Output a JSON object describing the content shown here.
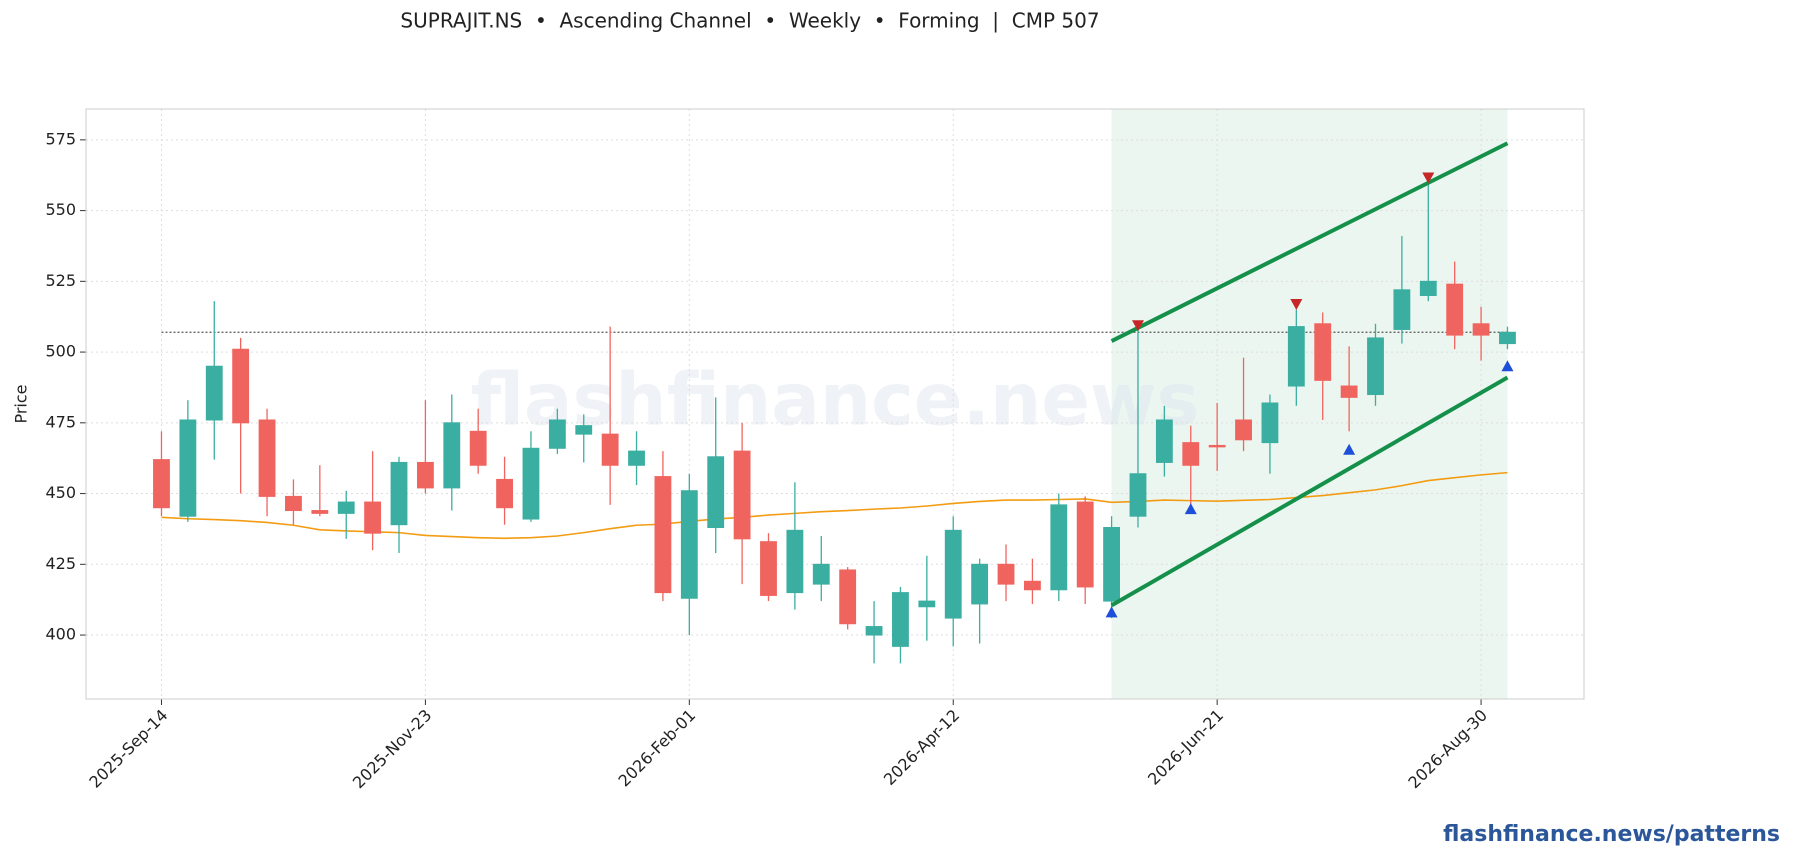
{
  "chart_data": {
    "type": "candlestick",
    "title": "SUPRAJIT.NS  •  Ascending Channel  •  Weekly  •  Forming  |  CMP 507",
    "y_label": "Price",
    "watermark": "flashfinance.news",
    "footer": "flashfinance.news/patterns",
    "categories": [
      "2025-Sep-14",
      null,
      null,
      null,
      null,
      null,
      null,
      null,
      null,
      null,
      "2025-Nov-23",
      null,
      null,
      null,
      null,
      null,
      null,
      null,
      null,
      null,
      "2026-Feb-01",
      null,
      null,
      null,
      null,
      null,
      null,
      null,
      null,
      null,
      "2026-Apr-12",
      null,
      null,
      null,
      null,
      null,
      null,
      null,
      null,
      null,
      "2026-Jun-21",
      null,
      null,
      null,
      null,
      null,
      null,
      null,
      null,
      null,
      "2026-Aug-30",
      null
    ],
    "open": [
      462,
      442,
      476,
      501,
      476,
      449,
      444,
      443,
      447,
      439,
      461,
      452,
      472,
      455,
      441,
      466,
      471,
      471,
      460,
      456,
      413,
      438,
      465,
      433,
      415,
      418,
      423,
      400,
      396,
      410,
      406,
      411,
      425,
      419,
      416,
      447,
      412,
      442,
      461,
      468,
      467,
      476,
      468,
      488,
      510,
      488,
      485,
      508,
      520,
      524,
      510,
      503
    ],
    "high": [
      472,
      483,
      518,
      505,
      480,
      455,
      460,
      451,
      465,
      463,
      483,
      485,
      480,
      463,
      472,
      480,
      478,
      509,
      472,
      465,
      457,
      484,
      475,
      436,
      454,
      435,
      424,
      412,
      417,
      428,
      442,
      427,
      432,
      427,
      450,
      449,
      442,
      510,
      481,
      474,
      482,
      498,
      485,
      515,
      514,
      502,
      510,
      541,
      560,
      532,
      516,
      509
    ],
    "low": [
      442,
      440,
      462,
      450,
      442,
      439,
      442,
      434,
      430,
      429,
      450,
      444,
      457,
      439,
      440,
      464,
      461,
      446,
      453,
      412,
      400,
      429,
      418,
      412,
      409,
      412,
      402,
      390,
      390,
      398,
      396,
      397,
      412,
      411,
      412,
      411,
      406,
      438,
      456,
      445,
      458,
      465,
      457,
      481,
      476,
      472,
      481,
      503,
      518,
      501,
      497,
      501
    ],
    "close": [
      445,
      476,
      495,
      475,
      449,
      444,
      443,
      447,
      436,
      461,
      452,
      475,
      460,
      445,
      466,
      476,
      474,
      460,
      465,
      415,
      451,
      463,
      434,
      414,
      437,
      425,
      404,
      403,
      415,
      412,
      437,
      425,
      418,
      416,
      446,
      417,
      438,
      457,
      476,
      460,
      466.5,
      469,
      482,
      509,
      490,
      484,
      505,
      522,
      525,
      506,
      506,
      507
    ],
    "up_color": "#3aaea0",
    "down_color": "#f0645f",
    "ylim": [
      377.4,
      585.9
    ],
    "yticks": [
      400,
      425,
      450,
      475,
      500,
      525,
      550,
      575
    ],
    "grid": true,
    "moving_average": {
      "color": "#f39c12",
      "values": [
        441.6,
        441.1,
        440.8,
        440.4,
        439.8,
        438.8,
        437.2,
        436.8,
        436.5,
        436.2,
        435.2,
        434.8,
        434.4,
        434.2,
        434.4,
        435.0,
        436.2,
        437.6,
        438.8,
        439.2,
        440.2,
        441.0,
        441.6,
        442.4,
        443.0,
        443.6,
        444.0,
        444.5,
        444.9,
        445.6,
        446.5,
        447.2,
        447.7,
        447.7,
        447.9,
        448.1,
        446.9,
        447.2,
        447.7,
        447.5,
        447.3,
        447.6,
        447.9,
        448.6,
        449.3,
        450.3,
        451.3,
        452.8,
        454.6,
        455.6,
        456.6,
        457.4
      ]
    },
    "reference_line": 507,
    "highlight_x": [
      36,
      51
    ],
    "channel": {
      "color": "#14904a",
      "x": [
        36,
        51
      ],
      "upper": [
        503.9,
        573.8
      ],
      "lower": [
        410.5,
        491.0
      ]
    },
    "pivot_highs": {
      "color": "#c62828",
      "x": [
        37,
        43,
        48
      ],
      "values": [
        509.5,
        517,
        561.7
      ]
    },
    "pivot_lows": {
      "color": "#1e4fd8",
      "x": [
        36,
        39,
        45,
        51
      ],
      "values": [
        408,
        444.5,
        465.5,
        495
      ]
    }
  }
}
